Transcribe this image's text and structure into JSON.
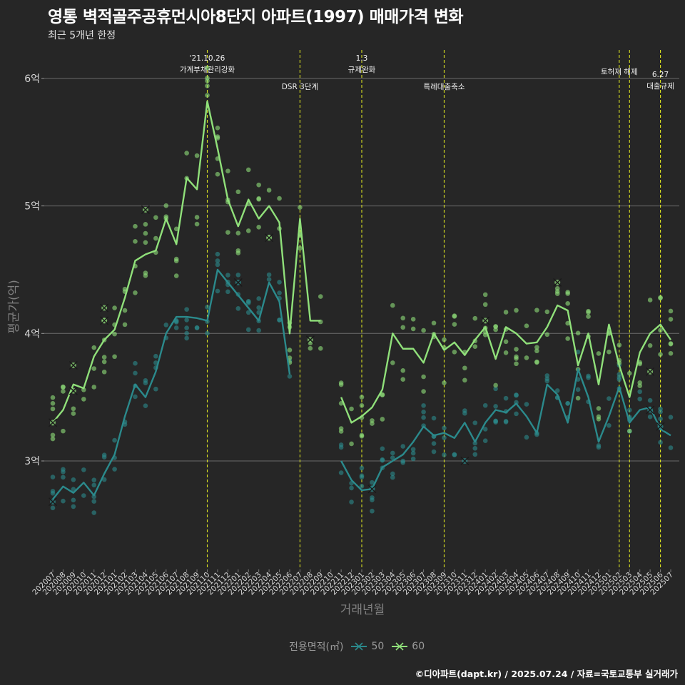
{
  "header": {
    "title": "영통 벽적골주공휴먼시아8단지 아파트(1997) 매매가격 변화",
    "subtitle": "최근 5개년 한정"
  },
  "caption": "©디아파트(dapt.kr) / 2025.07.24 / 자료=국토교통부 실거래가",
  "legend": {
    "title": "전용면적(㎡)",
    "items": [
      {
        "label": "50",
        "color": "#2b8a8c"
      },
      {
        "label": "60",
        "color": "#90e07a"
      }
    ]
  },
  "chart_data": {
    "type": "line",
    "xlabel": "거래년월",
    "ylabel": "평균가(억)",
    "ylim": [
      2.2,
      6.45
    ],
    "yticks": [
      3,
      4,
      5,
      6
    ],
    "ytick_labels": [
      "3억",
      "4억",
      "5억",
      "6억"
    ],
    "x": [
      "202007",
      "202008",
      "202009",
      "202010",
      "202011",
      "202012",
      "202101",
      "202102",
      "202103",
      "202104",
      "202105",
      "202106",
      "202107",
      "202108",
      "202109",
      "202110",
      "202111",
      "202112",
      "202201",
      "202202",
      "202203",
      "202204",
      "202205",
      "202206",
      "202207",
      "202208",
      "202209",
      "202210",
      "202211",
      "202212",
      "202301",
      "202302",
      "202303",
      "202304",
      "202305",
      "202306",
      "202307",
      "202308",
      "202309",
      "202310",
      "202311",
      "202312",
      "202401",
      "202402",
      "202403",
      "202404",
      "202405",
      "202406",
      "202407",
      "202408",
      "202409",
      "202410",
      "202411",
      "202412",
      "202501",
      "202502",
      "202503",
      "202504",
      "202505",
      "202506",
      "202507"
    ],
    "series": [
      {
        "name": "50",
        "color": "#2b8a8c",
        "values": [
          2.7,
          2.8,
          2.75,
          2.83,
          2.73,
          2.9,
          3.05,
          3.35,
          3.6,
          3.5,
          3.7,
          4.0,
          4.13,
          4.13,
          4.12,
          4.1,
          4.5,
          4.4,
          4.3,
          4.2,
          4.1,
          4.4,
          4.25,
          3.68,
          null,
          null,
          null,
          null,
          3.0,
          2.85,
          2.77,
          2.78,
          2.95,
          3.0,
          3.05,
          3.15,
          3.27,
          3.2,
          3.22,
          3.18,
          3.3,
          3.15,
          3.3,
          3.4,
          3.38,
          3.45,
          3.35,
          3.22,
          3.6,
          3.52,
          3.3,
          3.72,
          3.5,
          3.15,
          3.35,
          3.58,
          3.3,
          3.4,
          3.42,
          3.25,
          3.2
        ]
      },
      {
        "name": "60",
        "color": "#90e07a",
        "values": [
          3.3,
          3.4,
          3.6,
          3.57,
          3.82,
          3.95,
          4.03,
          4.28,
          4.57,
          4.62,
          4.65,
          4.9,
          4.7,
          5.22,
          5.13,
          5.82,
          5.45,
          5.05,
          4.84,
          5.05,
          4.9,
          5.0,
          4.87,
          4.0,
          4.9,
          4.1,
          4.1,
          null,
          3.5,
          3.3,
          3.35,
          3.42,
          3.56,
          4.0,
          3.88,
          3.88,
          3.77,
          4.0,
          3.87,
          3.93,
          3.83,
          3.95,
          4.05,
          3.8,
          4.05,
          4.0,
          3.92,
          3.93,
          4.05,
          4.22,
          4.18,
          3.75,
          4.0,
          3.6,
          4.07,
          3.75,
          3.5,
          3.85,
          4.0,
          4.07,
          3.95
        ]
      }
    ],
    "x_marks": [
      {
        "series": "50",
        "x": "202007",
        "y": 2.68
      },
      {
        "series": "50",
        "x": "202201",
        "y": 4.4
      },
      {
        "series": "50",
        "x": "202302",
        "y": 2.78
      },
      {
        "series": "50",
        "x": "202311",
        "y": 3.0
      },
      {
        "series": "50",
        "x": "202505",
        "y": 3.4
      },
      {
        "series": "50",
        "x": "202506",
        "y": 3.27
      },
      {
        "series": "60",
        "x": "202007",
        "y": 3.3
      },
      {
        "series": "60",
        "x": "202009",
        "y": 3.55
      },
      {
        "series": "60",
        "x": "202009",
        "y": 3.75
      },
      {
        "series": "60",
        "x": "202012",
        "y": 4.2
      },
      {
        "series": "60",
        "x": "202012",
        "y": 4.1
      },
      {
        "series": "60",
        "x": "202104",
        "y": 4.97
      },
      {
        "series": "60",
        "x": "202204",
        "y": 4.75
      },
      {
        "series": "60",
        "x": "202208",
        "y": 3.95
      },
      {
        "series": "60",
        "x": "202401",
        "y": 4.1
      },
      {
        "series": "60",
        "x": "202408",
        "y": 4.4
      },
      {
        "series": "60",
        "x": "202505",
        "y": 3.7
      }
    ],
    "vlines": [
      {
        "x": "202110",
        "label": "'21.10.26\n가계부채관리강화",
        "row": 0
      },
      {
        "x": "202207",
        "label": "DSR 3단계",
        "row": 2
      },
      {
        "x": "202301",
        "label": "1.3\n규제완화",
        "row": 0
      },
      {
        "x": "202309",
        "label": "특례대출축소",
        "row": 2
      },
      {
        "x": "202502",
        "label": "토허제 해제",
        "row": 1
      },
      {
        "x": "202503",
        "label": "",
        "row": 1
      },
      {
        "x": "202506",
        "label": "6.27\n대출규제",
        "row": 3
      }
    ]
  }
}
